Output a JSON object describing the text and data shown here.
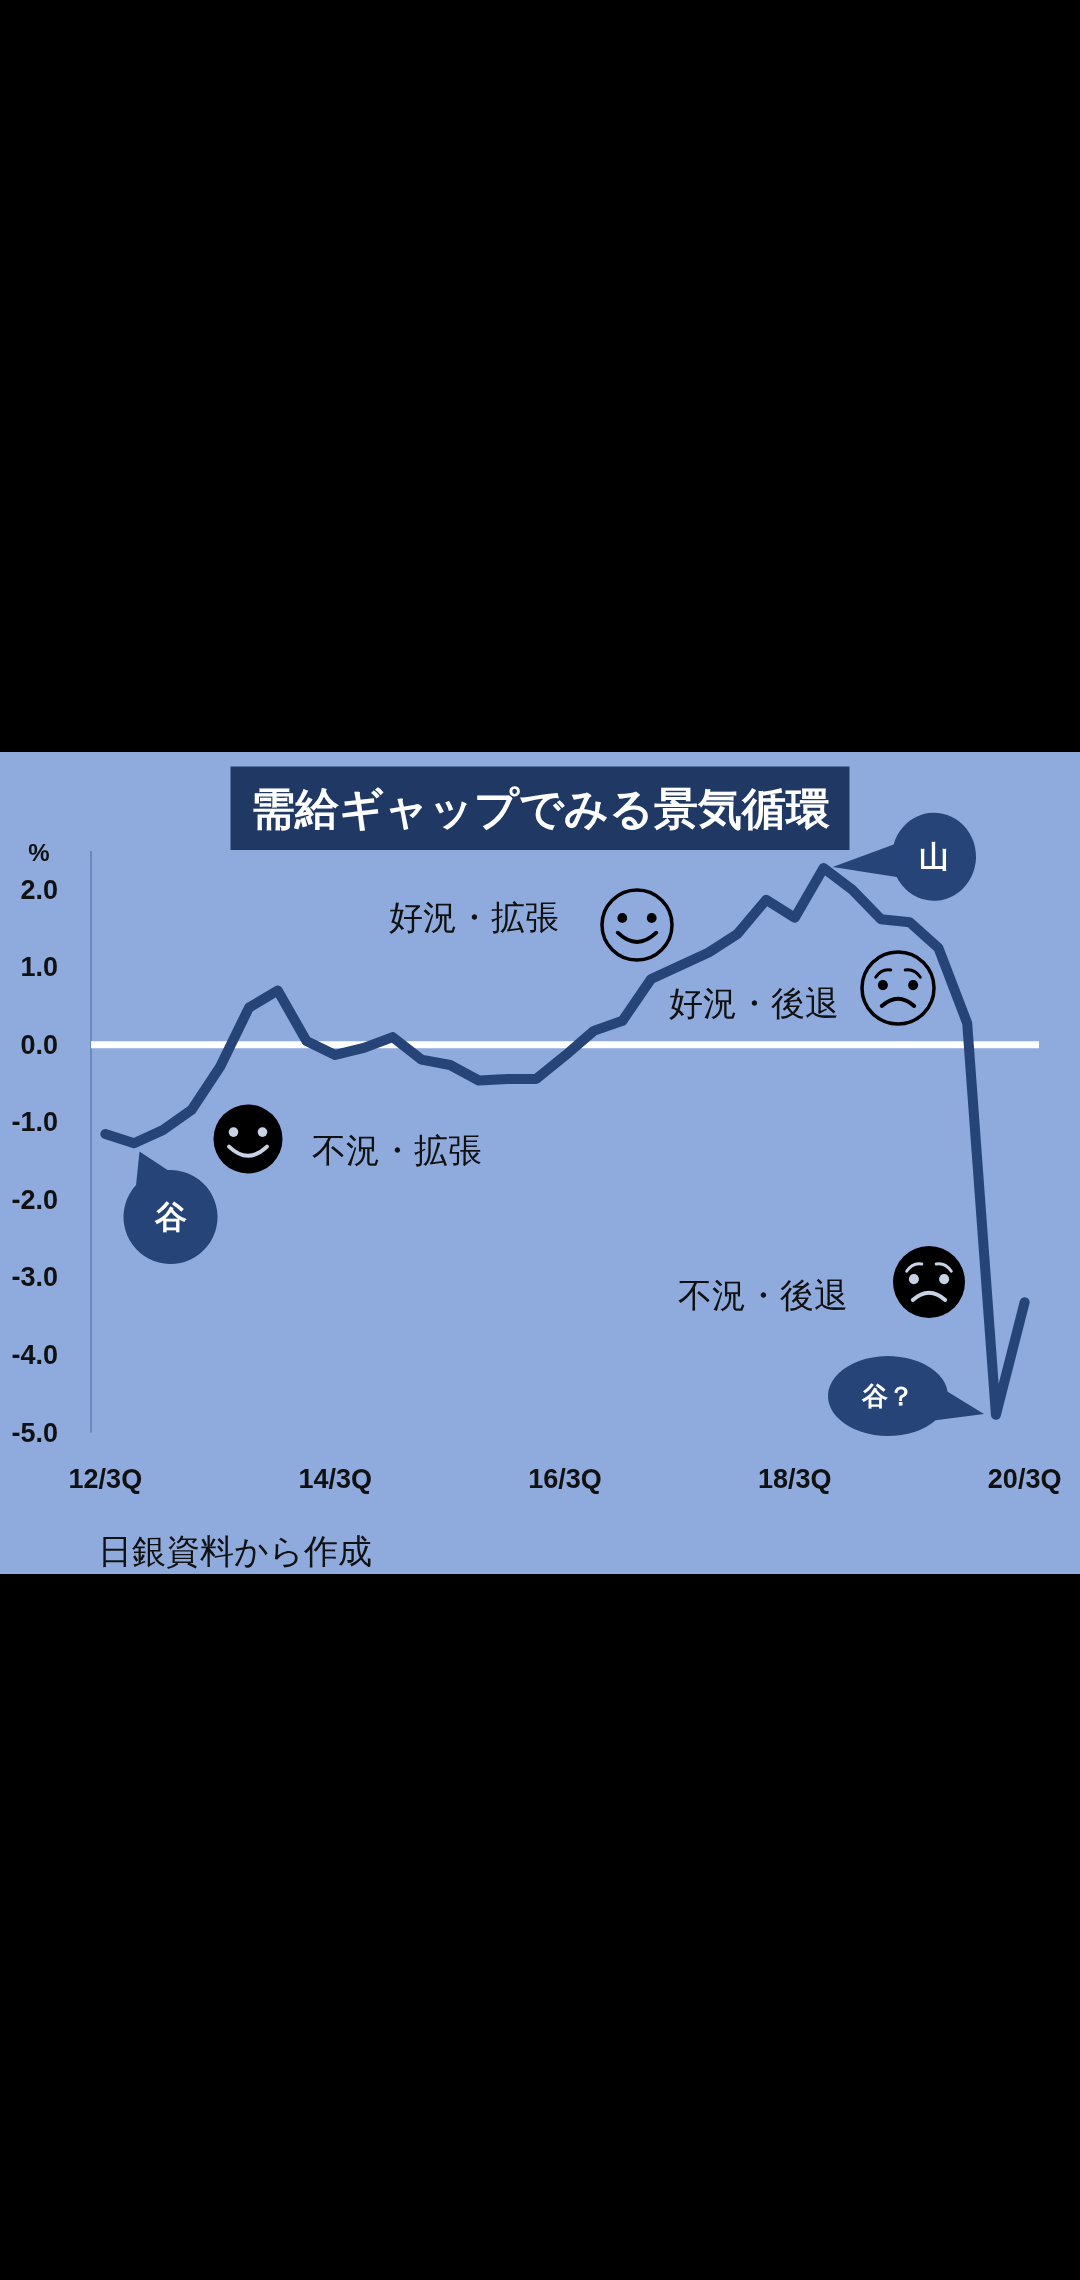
{
  "chart_data": {
    "type": "line",
    "title": "需給ギャップでみる景気循環",
    "ylabel": "%",
    "categories": [
      "12/3Q",
      null,
      null,
      null,
      null,
      null,
      null,
      null,
      "14/3Q",
      null,
      null,
      null,
      null,
      null,
      null,
      null,
      "16/3Q",
      null,
      null,
      null,
      null,
      null,
      null,
      null,
      "18/3Q",
      null,
      null,
      null,
      null,
      null,
      null,
      null,
      "20/3Q"
    ],
    "series": [
      {
        "color": "#264478",
        "values": [
          -1.15,
          -1.27,
          -1.1,
          -0.84,
          -0.28,
          0.48,
          0.7,
          0.05,
          -0.13,
          -0.04,
          0.1,
          -0.19,
          -0.26,
          -0.46,
          -0.44,
          -0.44,
          -0.14,
          0.18,
          0.31,
          0.85,
          1.02,
          1.19,
          1.43,
          1.87,
          1.64,
          2.28,
          2.0,
          1.62,
          1.58,
          1.25,
          0.28,
          -4.77,
          -3.32
        ]
      }
    ],
    "ylim": [
      -5.0,
      2.5
    ],
    "yticks": [
      {
        "value": 2,
        "label": "2.0"
      },
      {
        "value": 1,
        "label": "1.0"
      },
      {
        "value": 0,
        "label": "0.0"
      },
      {
        "value": -1,
        "label": "-1.0"
      },
      {
        "value": -2,
        "label": "-2.0"
      },
      {
        "value": -3,
        "label": "-3.0"
      },
      {
        "value": -4,
        "label": "-4.0"
      },
      {
        "value": -5,
        "label": "-5.0"
      }
    ],
    "ref_lines": [
      {
        "axis": "y",
        "value": 0,
        "color": "#ffffff"
      }
    ],
    "annotations": [
      "谷",
      "山",
      "谷？",
      "好況・拡張",
      "好況・後退",
      "不況・拡張",
      "不況・後退",
      "日銀資料から作成"
    ]
  }
}
